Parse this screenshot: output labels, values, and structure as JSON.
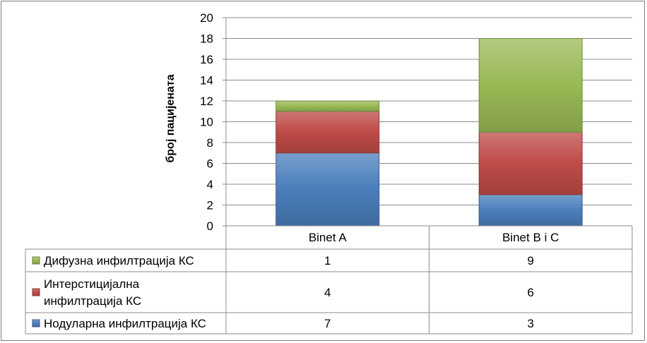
{
  "chart_data": {
    "type": "bar",
    "stacked": true,
    "categories": [
      "Binet A",
      "Binet B i C"
    ],
    "series": [
      {
        "name": "Нодуларна инфилтрација КС",
        "values": [
          7,
          3
        ],
        "color": "#4a7ebb"
      },
      {
        "name": "Интерстицијална инфилтрација КС",
        "values": [
          4,
          6
        ],
        "color": "#be4b48"
      },
      {
        "name": "Дифузна инфилтрација КС",
        "values": [
          1,
          9
        ],
        "color": "#98b954"
      }
    ],
    "table_order": [
      2,
      1,
      0
    ],
    "table_rows": [
      {
        "label_lines": [
          "Дифузна инфилтрација КС"
        ]
      },
      {
        "label_lines": [
          "Интерстицијална",
          "инфилтрација КС"
        ]
      },
      {
        "label_lines": [
          "Нодуларна инфилтрација КС"
        ]
      }
    ],
    "ylabel": "број пацијената",
    "xlabel": "",
    "title": "",
    "ylim": [
      0,
      20
    ],
    "yticks": [
      "0",
      "2",
      "4",
      "6",
      "8",
      "10",
      "12",
      "14",
      "16",
      "18",
      "20"
    ],
    "grid": true,
    "legend": "data-table"
  }
}
